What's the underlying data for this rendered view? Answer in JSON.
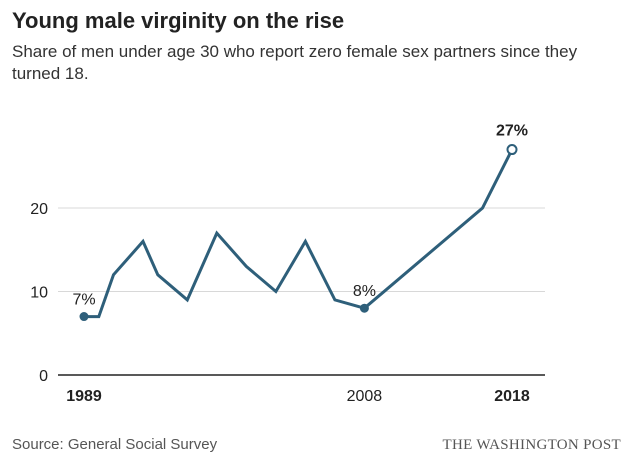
{
  "header": {
    "title": "Young male virginity on the rise",
    "subtitle": "Share of men under age 30 who report zero female sex partners since they turned 18."
  },
  "footer": {
    "source": "Source: General Social Survey",
    "brand": "THE WASHINGTON POST"
  },
  "colors": {
    "line": "#2e5f7a",
    "grid": "#d8d8d8",
    "baseline": "#222222"
  },
  "chart_data": {
    "type": "line",
    "title": "Young male virginity on the rise",
    "subtitle": "Share of men under age 30 who report zero female sex partners since they turned 18.",
    "xlabel": "",
    "ylabel": "",
    "xlim": [
      1989,
      2018
    ],
    "ylim": [
      0,
      30
    ],
    "grid": true,
    "y_ticks": [
      {
        "value": 0,
        "label": "0"
      },
      {
        "value": 10,
        "label": "10"
      },
      {
        "value": 20,
        "label": "20"
      }
    ],
    "x_ticks": [
      {
        "value": 1989,
        "label": "1989",
        "bold": true
      },
      {
        "value": 2008,
        "label": "2008",
        "bold": false
      },
      {
        "value": 2018,
        "label": "2018",
        "bold": true
      }
    ],
    "series": [
      {
        "x": [
          1989,
          1990,
          1991,
          1993,
          1994,
          1996,
          1998,
          2000,
          2002,
          2004,
          2006,
          2008,
          2016,
          2018
        ],
        "y": [
          7,
          7,
          12,
          16,
          12,
          9,
          17,
          13,
          10,
          16,
          9,
          8,
          20,
          27
        ]
      }
    ],
    "annotations": [
      {
        "x": 1989,
        "y": 7,
        "label": "7%",
        "marker": "filled",
        "bold": false
      },
      {
        "x": 2008,
        "y": 8,
        "label": "8%",
        "marker": "filled",
        "bold": false
      },
      {
        "x": 2018,
        "y": 27,
        "label": "27%",
        "marker": "open",
        "bold": true
      }
    ]
  }
}
